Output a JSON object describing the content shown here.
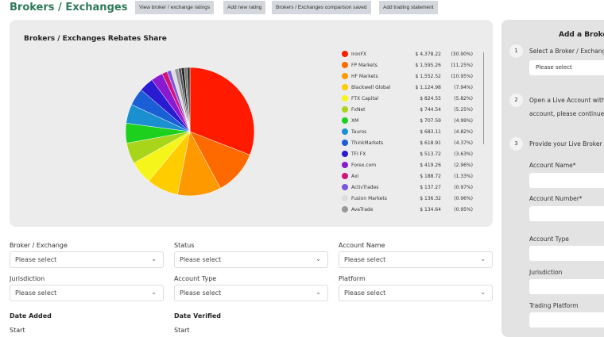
{
  "header": {
    "title": "Brokers / Exchanges",
    "buttons": [
      "View broker / exchange ratings",
      "Add new rating",
      "Brokers / Exchanges comparison saved",
      "Add trading statement"
    ]
  },
  "chart_data": {
    "type": "pie",
    "title": "Brokers / Exchanges Rebates Share",
    "slices": [
      {
        "name": "IronFX",
        "value": "$ 4,378.22",
        "pct": "(30.90%)",
        "share": 30.9,
        "color": "#ff1a00"
      },
      {
        "name": "FP Markets",
        "value": "$ 1,595.26",
        "pct": "(11.25%)",
        "share": 11.25,
        "color": "#ff6a00"
      },
      {
        "name": "HF Markets",
        "value": "$ 1,552.52",
        "pct": "(10.95%)",
        "share": 10.95,
        "color": "#ff9900"
      },
      {
        "name": "Blackwell Global",
        "value": "$ 1,124.98",
        "pct": "(7.94%)",
        "share": 7.94,
        "color": "#ffcc00"
      },
      {
        "name": "FTX Capital",
        "value": "$ 824.55",
        "pct": "(5.82%)",
        "share": 5.82,
        "color": "#f5f51a"
      },
      {
        "name": "FxNet",
        "value": "$ 744.54",
        "pct": "(5.25%)",
        "share": 5.25,
        "color": "#a8d51a"
      },
      {
        "name": "XM",
        "value": "$ 707.59",
        "pct": "(4.99%)",
        "share": 4.99,
        "color": "#1ed01e"
      },
      {
        "name": "Tauros",
        "value": "$ 683.11",
        "pct": "(4.82%)",
        "share": 4.82,
        "color": "#1a90d0"
      },
      {
        "name": "ThinkMarkets",
        "value": "$ 618.91",
        "pct": "(4.37%)",
        "share": 4.37,
        "color": "#1a5fd5"
      },
      {
        "name": "TFI FX",
        "value": "$ 513.72",
        "pct": "(3.63%)",
        "share": 3.63,
        "color": "#2a1ad0"
      },
      {
        "name": "Forex.com",
        "value": "$ 419.26",
        "pct": "(2.96%)",
        "share": 2.96,
        "color": "#8a1ad0"
      },
      {
        "name": "Axi",
        "value": "$ 188.72",
        "pct": "(1.33%)",
        "share": 1.33,
        "color": "#d0157a"
      },
      {
        "name": "ActivTrades",
        "value": "$ 137.27",
        "pct": "(0.97%)",
        "share": 0.97,
        "color": "#7a55e0"
      },
      {
        "name": "Fusion Markets",
        "value": "$ 136.32",
        "pct": "(0.96%)",
        "share": 0.96,
        "color": "#dddddd"
      },
      {
        "name": "AvaTrade",
        "value": "$ 134.64",
        "pct": "(0.95%)",
        "share": 0.95,
        "color": "#999999"
      }
    ]
  },
  "filters": [
    {
      "label": "Broker / Exchange",
      "value": "Please select"
    },
    {
      "label": "Status",
      "value": "Please select"
    },
    {
      "label": "Account Name",
      "value": "Please select"
    },
    {
      "label": "Jurisdiction",
      "value": "Please select"
    },
    {
      "label": "Account Type",
      "value": "Please select"
    },
    {
      "label": "Platform",
      "value": "Please select"
    }
  ],
  "dates": {
    "added": "Date Added",
    "verified": "Date Verified",
    "start": "Start"
  },
  "panel": {
    "title": "Add a Broker",
    "step1": "Select a Broker / Exchange",
    "select": "Please select",
    "step2a": "Open a Live Account with",
    "step2b": "account, please continue t",
    "step3": "Provide your Live Broker /",
    "fields": [
      "Account Name*",
      "Account Number*",
      "Account Type",
      "Jurisdiction",
      "Trading Platform"
    ],
    "steps": [
      "1",
      "2",
      "3"
    ]
  }
}
